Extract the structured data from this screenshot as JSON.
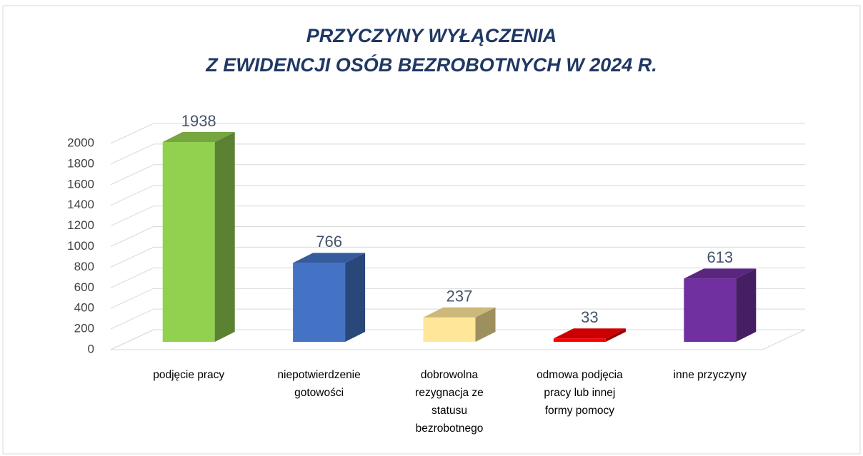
{
  "chart_data": {
    "type": "bar3d",
    "title": [
      "PRZYCZYNY WYŁĄCZENIA",
      "Z EWIDENCJI OSÓB BEZROBOTNYCH W 2024 R."
    ],
    "categories": [
      "podjęcie pracy",
      "niepotwierdzenie gotowości",
      "dobrowolna rezygnacja ze statusu bezrobotnego",
      "odmowa podjęcia pracy lub innej formy pomocy",
      "inne przyczyny"
    ],
    "values": [
      1938,
      766,
      237,
      33,
      613
    ],
    "colors": [
      "#92d050",
      "#4472c4",
      "#ffe699",
      "#ff0000",
      "#7030a0"
    ],
    "ylim": [
      0,
      2000
    ],
    "yticks": [
      0,
      200,
      400,
      600,
      800,
      1000,
      1200,
      1400,
      1600,
      1800,
      2000
    ],
    "grid": true
  }
}
